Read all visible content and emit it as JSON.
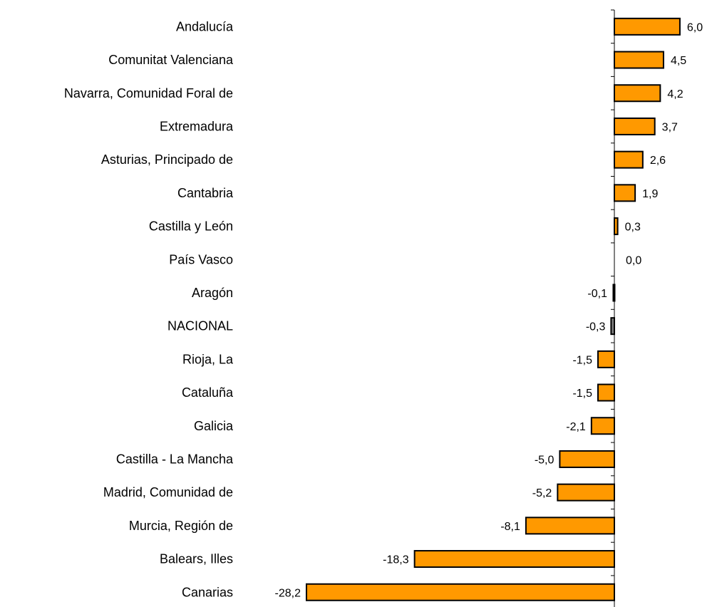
{
  "chart_data": {
    "type": "bar",
    "orientation": "horizontal",
    "categories": [
      "Andalucía",
      "Comunitat Valenciana",
      "Navarra, Comunidad Foral de",
      "Extremadura",
      "Asturias, Principado de",
      "Cantabria",
      "Castilla y León",
      "País Vasco",
      "Aragón",
      "NACIONAL",
      "Rioja, La",
      "Cataluña",
      "Galicia",
      "Castilla - La Mancha",
      "Madrid, Comunidad de",
      "Murcia, Región de",
      "Balears, Illes",
      "Canarias"
    ],
    "values": [
      6.0,
      4.5,
      4.2,
      3.7,
      2.6,
      1.9,
      0.3,
      0.0,
      -0.1,
      -0.3,
      -1.5,
      -1.5,
      -2.1,
      -5.0,
      -5.2,
      -8.1,
      -18.3,
      -28.2
    ],
    "value_labels": [
      "6,0",
      "4,5",
      "4,2",
      "3,7",
      "2,6",
      "1,9",
      "0,3",
      "0,0",
      "-0,1",
      "-0,3",
      "-1,5",
      "-1,5",
      "-2,1",
      "-5,0",
      "-5,2",
      "-8,1",
      "-18,3",
      "-28,2"
    ],
    "highlight_category": "NACIONAL",
    "colors": {
      "bar": "#FF9900",
      "highlight": "#808080",
      "outline": "#000000"
    },
    "title": "",
    "xlabel": "",
    "ylabel": "",
    "xlim": [
      -28.2,
      6.0
    ],
    "grid": false,
    "legend": "none"
  }
}
